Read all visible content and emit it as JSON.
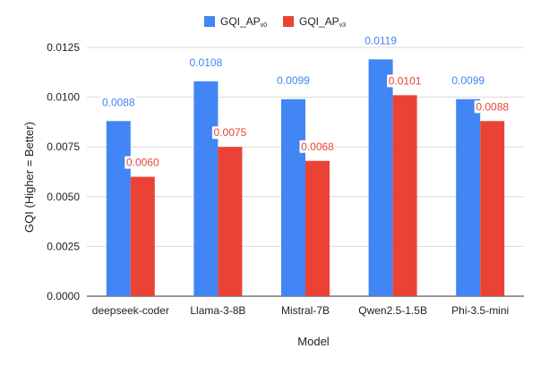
{
  "chart_data": {
    "type": "bar",
    "title": "",
    "xlabel": "Model",
    "ylabel": "GQI (Higher = Better)",
    "ylim": [
      0,
      0.0125
    ],
    "yticks": [
      "0.0000",
      "0.0025",
      "0.0050",
      "0.0075",
      "0.0100",
      "0.0125"
    ],
    "grid": true,
    "legend_position": "top-center",
    "categories": [
      "deepseek-coder",
      "Llama-3-8B",
      "Mistral-7B",
      "Qwen2.5-1.5B",
      "Phi-3.5-mini"
    ],
    "series": [
      {
        "name": "GQI_AP",
        "name_sub": "v0",
        "color": "#4285F4",
        "values": [
          0.0088,
          0.0108,
          0.0099,
          0.0119,
          0.0099
        ],
        "labels": [
          "0.0088",
          "0.0108",
          "0.0099",
          "0.0119",
          "0.0099"
        ]
      },
      {
        "name": "GQI_AP",
        "name_sub": "v3",
        "color": "#EA4335",
        "values": [
          0.006,
          0.0075,
          0.0068,
          0.0101,
          0.0088
        ],
        "labels": [
          "0.0060",
          "0.0075",
          "0.0068",
          "0.0101",
          "0.0088"
        ]
      }
    ]
  }
}
